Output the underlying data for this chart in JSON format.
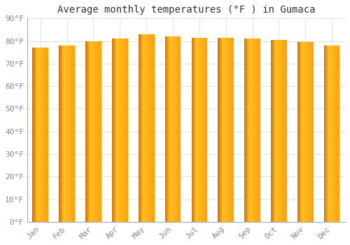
{
  "title": "Average monthly temperatures (°F ) in Gumaca",
  "months": [
    "Jan",
    "Feb",
    "Mar",
    "Apr",
    "May",
    "Jun",
    "Jul",
    "Aug",
    "Sep",
    "Oct",
    "Nov",
    "Dec"
  ],
  "values": [
    77,
    78,
    80,
    81,
    83,
    82,
    81.5,
    81.5,
    81,
    80.5,
    79.5,
    78
  ],
  "ylim": [
    0,
    90
  ],
  "yticks": [
    0,
    10,
    20,
    30,
    40,
    50,
    60,
    70,
    80,
    90
  ],
  "ytick_labels": [
    "0°F",
    "10°F",
    "20°F",
    "30°F",
    "40°F",
    "50°F",
    "60°F",
    "70°F",
    "80°F",
    "90°F"
  ],
  "bar_color_left": "#E07800",
  "bar_color_center": "#FFC020",
  "bar_color_right": "#FFB800",
  "bar_edge_color": "#B8860B",
  "background_color": "#FFFFFF",
  "plot_bg_color": "#FFFFFF",
  "grid_color": "#DDDDDD",
  "title_fontsize": 10,
  "tick_fontsize": 8,
  "title_color": "#333333",
  "tick_color": "#888888"
}
